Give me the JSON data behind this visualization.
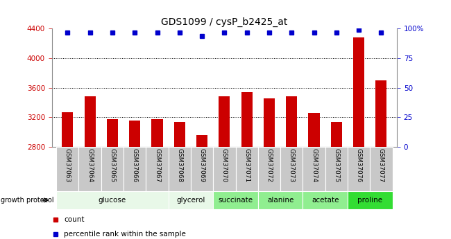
{
  "title": "GDS1099 / cysP_b2425_at",
  "samples": [
    "GSM37063",
    "GSM37064",
    "GSM37065",
    "GSM37066",
    "GSM37067",
    "GSM37068",
    "GSM37069",
    "GSM37070",
    "GSM37071",
    "GSM37072",
    "GSM37073",
    "GSM37074",
    "GSM37075",
    "GSM37076",
    "GSM37077"
  ],
  "bar_values": [
    3270,
    3490,
    3175,
    3155,
    3175,
    3140,
    2960,
    3490,
    3545,
    3460,
    3490,
    3265,
    3140,
    4280,
    3700
  ],
  "percentile_values": [
    97,
    97,
    97,
    97,
    97,
    97,
    94,
    97,
    97,
    97,
    97,
    97,
    97,
    99,
    97
  ],
  "bar_color": "#cc0000",
  "dot_color": "#0000cc",
  "ylim_left": [
    2800,
    4400
  ],
  "ylim_right": [
    0,
    100
  ],
  "yticks_left": [
    2800,
    3200,
    3600,
    4000,
    4400
  ],
  "yticks_right": [
    0,
    25,
    50,
    75,
    100
  ],
  "yticklabels_right": [
    "0",
    "25",
    "50",
    "75",
    "100%"
  ],
  "group_spans": [
    {
      "label": "glucose",
      "start": 0,
      "end": 4,
      "color": "#e8f8e8"
    },
    {
      "label": "glycerol",
      "start": 5,
      "end": 6,
      "color": "#e8f8e8"
    },
    {
      "label": "succinate",
      "start": 7,
      "end": 8,
      "color": "#90ee90"
    },
    {
      "label": "alanine",
      "start": 9,
      "end": 10,
      "color": "#90ee90"
    },
    {
      "label": "acetate",
      "start": 11,
      "end": 12,
      "color": "#90ee90"
    },
    {
      "label": "proline",
      "start": 13,
      "end": 14,
      "color": "#33dd33"
    }
  ],
  "growth_protocol_label": "growth protocol",
  "legend_count_label": "count",
  "legend_percentile_label": "percentile rank within the sample",
  "tick_bg_color": "#c8c8c8",
  "grid_lines": [
    3200,
    3600,
    4000
  ],
  "bar_width": 0.5
}
